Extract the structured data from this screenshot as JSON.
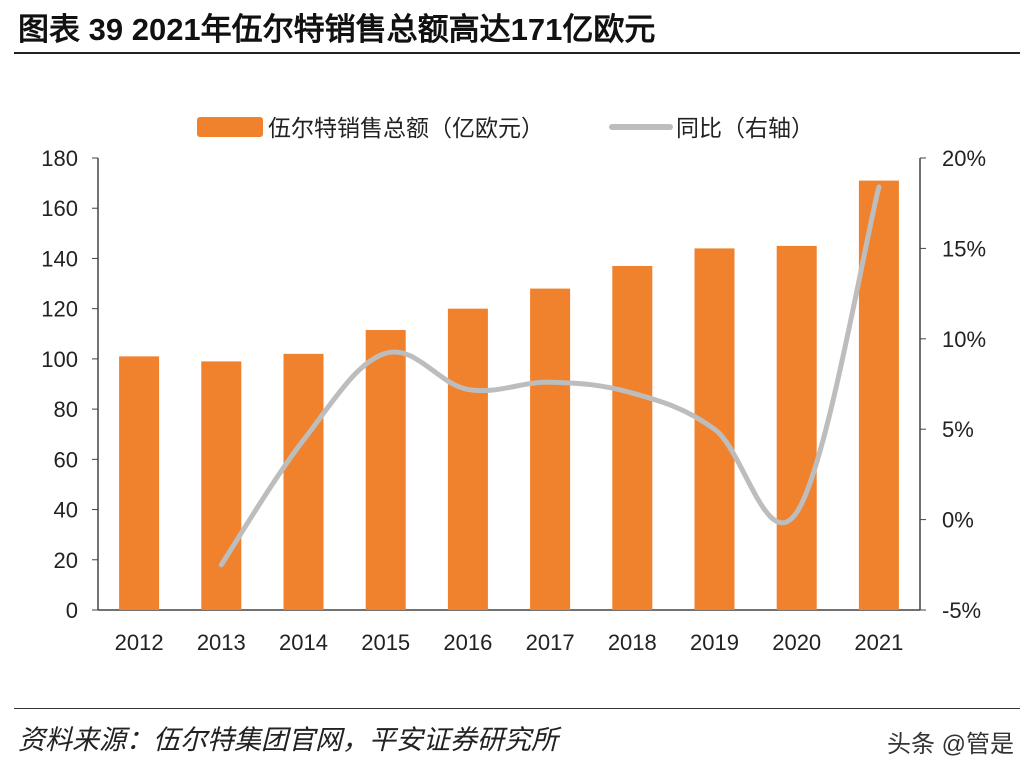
{
  "title": "图表 39 2021年伍尔特销售总额高达171亿欧元",
  "source": "资料来源：伍尔特集团官网，平安证券研究所",
  "watermark": "头条 @管是",
  "chart_data": {
    "type": "bar+line",
    "categories": [
      "2012",
      "2013",
      "2014",
      "2015",
      "2016",
      "2017",
      "2018",
      "2019",
      "2020",
      "2021"
    ],
    "series": [
      {
        "name": "伍尔特销售总额（亿欧元）",
        "type": "bar",
        "axis": "left",
        "color": "#F0812D",
        "values": [
          101,
          99,
          102,
          111.5,
          120,
          128,
          137,
          144,
          145,
          171
        ]
      },
      {
        "name": "同比（右轴）",
        "type": "line",
        "axis": "right",
        "color": "#BDBDBD",
        "values": [
          null,
          -2.5,
          4.4,
          9.2,
          7.2,
          7.6,
          7.0,
          5.0,
          0.4,
          18.4
        ]
      }
    ],
    "ylim_left": [
      0,
      180
    ],
    "yticks_left": [
      "0",
      "20",
      "40",
      "60",
      "80",
      "100",
      "120",
      "140",
      "160",
      "180"
    ],
    "ylim_right": [
      -5,
      20
    ],
    "yticks_right": [
      "-5%",
      "0%",
      "5%",
      "10%",
      "15%",
      "20%"
    ],
    "grid": false,
    "legend_position": "top"
  }
}
